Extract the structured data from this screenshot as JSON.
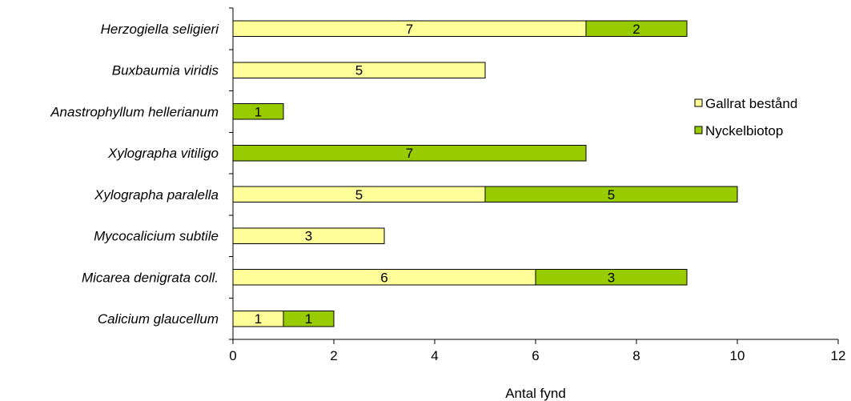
{
  "chart_data": {
    "type": "bar",
    "orientation": "horizontal",
    "stacked": true,
    "categories": [
      "Herzogiella seligieri",
      "Buxbaumia viridis",
      "Anastrophyllum hellerianum",
      "Xylographa vitiligo",
      "Xylographa paralella",
      "Mycocalicium subtile",
      "Micarea denigrata coll.",
      "Calicium glaucellum"
    ],
    "series": [
      {
        "name": "Gallrat bestånd",
        "color": "#ffff99",
        "values": [
          7,
          5,
          0,
          0,
          5,
          3,
          6,
          1
        ]
      },
      {
        "name": "Nyckelbiotop",
        "color": "#99cc00",
        "values": [
          2,
          0,
          1,
          7,
          5,
          0,
          3,
          1
        ]
      }
    ],
    "title": "",
    "xlabel": "Antal fynd",
    "ylabel": "",
    "xlim": [
      0,
      12
    ],
    "xticks": [
      "0",
      "2",
      "4",
      "6",
      "8",
      "10",
      "12"
    ],
    "grid": false,
    "legend_position": "right"
  }
}
